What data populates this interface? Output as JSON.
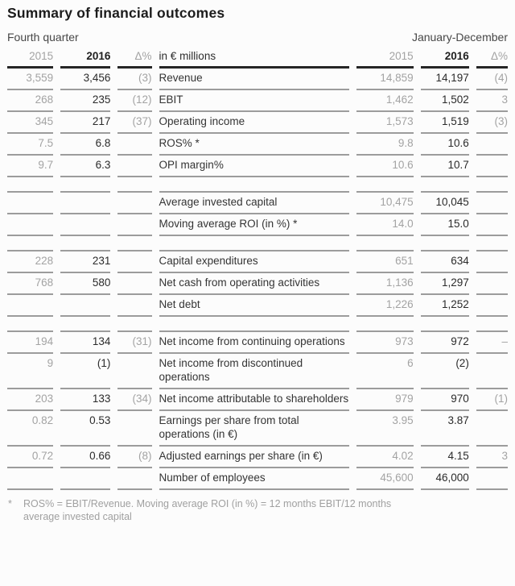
{
  "title": "Summary of financial outcomes",
  "periods": {
    "left": "Fourth quarter",
    "right": "January-December"
  },
  "header": {
    "q4_2015": "2015",
    "q4_2016": "2016",
    "q4_delta": "Δ%",
    "label": "in € millions",
    "fy_2015": "2015",
    "fy_2016": "2016",
    "fy_delta": "Δ%"
  },
  "rows": [
    {
      "type": "data",
      "q4_2015": "3,559",
      "q4_2016": "3,456",
      "q4_delta": "(3)",
      "label": "Revenue",
      "fy_2015": "14,859",
      "fy_2016": "14,197",
      "fy_delta": "(4)"
    },
    {
      "type": "data",
      "q4_2015": "268",
      "q4_2016": "235",
      "q4_delta": "(12)",
      "label": "EBIT",
      "fy_2015": "1,462",
      "fy_2016": "1,502",
      "fy_delta": "3"
    },
    {
      "type": "data",
      "q4_2015": "345",
      "q4_2016": "217",
      "q4_delta": "(37)",
      "label": "Operating income",
      "fy_2015": "1,573",
      "fy_2016": "1,519",
      "fy_delta": "(3)"
    },
    {
      "type": "data",
      "q4_2015": "7.5",
      "q4_2016": "6.8",
      "q4_delta": "",
      "label": "ROS% *",
      "fy_2015": "9.8",
      "fy_2016": "10.6",
      "fy_delta": ""
    },
    {
      "type": "data",
      "q4_2015": "9.7",
      "q4_2016": "6.3",
      "q4_delta": "",
      "label": "OPI margin%",
      "fy_2015": "10.6",
      "fy_2016": "10.7",
      "fy_delta": ""
    },
    {
      "type": "spacer"
    },
    {
      "type": "data",
      "q4_2015": "",
      "q4_2016": "",
      "q4_delta": "",
      "label": "Average invested capital",
      "fy_2015": "10,475",
      "fy_2016": "10,045",
      "fy_delta": ""
    },
    {
      "type": "data",
      "q4_2015": "",
      "q4_2016": "",
      "q4_delta": "",
      "label": "Moving average ROI (in %) *",
      "fy_2015": "14.0",
      "fy_2016": "15.0",
      "fy_delta": ""
    },
    {
      "type": "spacer"
    },
    {
      "type": "data",
      "q4_2015": "228",
      "q4_2016": "231",
      "q4_delta": "",
      "label": "Capital expenditures",
      "fy_2015": "651",
      "fy_2016": "634",
      "fy_delta": ""
    },
    {
      "type": "data",
      "q4_2015": "768",
      "q4_2016": "580",
      "q4_delta": "",
      "label": "Net cash from operating activities",
      "fy_2015": "1,136",
      "fy_2016": "1,297",
      "fy_delta": ""
    },
    {
      "type": "data",
      "q4_2015": "",
      "q4_2016": "",
      "q4_delta": "",
      "label": "Net debt",
      "fy_2015": "1,226",
      "fy_2016": "1,252",
      "fy_delta": ""
    },
    {
      "type": "spacer"
    },
    {
      "type": "data",
      "q4_2015": "194",
      "q4_2016": "134",
      "q4_delta": "(31)",
      "label": "Net income from continuing operations",
      "fy_2015": "973",
      "fy_2016": "972",
      "fy_delta": "–"
    },
    {
      "type": "data",
      "q4_2015": "9",
      "q4_2016": "(1)",
      "q4_delta": "",
      "label": "Net income from discontinued operations",
      "fy_2015": "6",
      "fy_2016": "(2)",
      "fy_delta": ""
    },
    {
      "type": "data",
      "q4_2015": "203",
      "q4_2016": "133",
      "q4_delta": "(34)",
      "label": "Net income attributable to shareholders",
      "fy_2015": "979",
      "fy_2016": "970",
      "fy_delta": "(1)"
    },
    {
      "type": "data",
      "q4_2015": "0.82",
      "q4_2016": "0.53",
      "q4_delta": "",
      "label": "Earnings per share from total operations (in €)",
      "fy_2015": "3.95",
      "fy_2016": "3.87",
      "fy_delta": ""
    },
    {
      "type": "data",
      "q4_2015": "0.72",
      "q4_2016": "0.66",
      "q4_delta": "(8)",
      "label": "Adjusted earnings per share (in €)",
      "fy_2015": "4.02",
      "fy_2016": "4.15",
      "fy_delta": "3"
    },
    {
      "type": "data",
      "q4_2015": "",
      "q4_2016": "",
      "q4_delta": "",
      "label": "Number of employees",
      "fy_2015": "45,600",
      "fy_2016": "46,000",
      "fy_delta": ""
    }
  ],
  "footnote": {
    "marker": "*",
    "text": "ROS% = EBIT/Revenue. Moving average ROI (in %) = 12 months EBIT/12 months average invested capital"
  },
  "colors": {
    "muted": "#a3a3a3",
    "dark_text": "#2b2b2b",
    "rule_dark": "#262626",
    "rule_gray": "#9c9c9c"
  }
}
